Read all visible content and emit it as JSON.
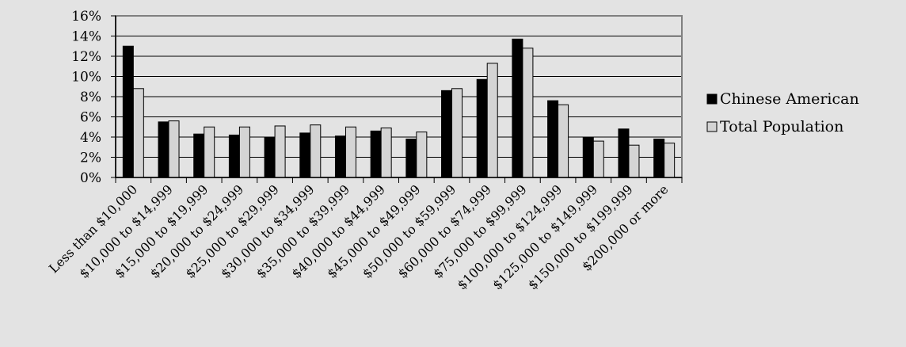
{
  "chart_data": {
    "type": "bar",
    "title": "",
    "xlabel": "",
    "ylabel": "",
    "ylim": [
      0,
      16
    ],
    "y_ticks": [
      "0%",
      "2%",
      "4%",
      "6%",
      "8%",
      "10%",
      "12%",
      "14%",
      "16%"
    ],
    "grid": true,
    "legend_position": "right",
    "categories": [
      "Less than $10,000",
      "$10,000 to $14,999",
      "$15,000 to $19,999",
      "$20,000 to $24,999",
      "$25,000 to $29,999",
      "$30,000 to $34,999",
      "$35,000 to $39,999",
      "$40,000 to $44,999",
      "$45,000 to $49,999",
      "$50,000 to $59,999",
      "$60,000 to $74,999",
      "$75,000 to $99,999",
      "$100,000 to $124,999",
      "$125,000 to $149,999",
      "$150,000 to $199,999",
      "$200,000 or more"
    ],
    "series": [
      {
        "name": "Chinese American",
        "color": "#000000",
        "values": [
          13.0,
          5.5,
          4.3,
          4.2,
          4.0,
          4.4,
          4.1,
          4.6,
          3.8,
          8.6,
          9.7,
          13.7,
          7.6,
          4.0,
          4.8,
          3.8
        ]
      },
      {
        "name": "Total Population",
        "color": "#d4d4d4",
        "values": [
          8.8,
          5.6,
          5.0,
          5.0,
          5.1,
          5.2,
          5.0,
          4.9,
          4.5,
          8.8,
          11.3,
          12.8,
          7.2,
          3.6,
          3.2,
          3.4
        ]
      }
    ]
  }
}
